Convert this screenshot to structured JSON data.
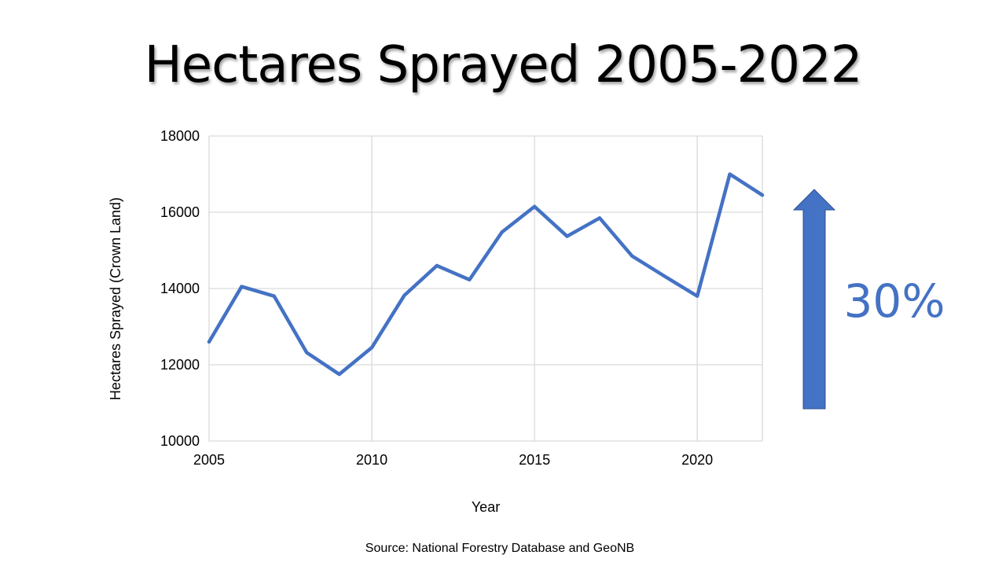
{
  "slide": {
    "title": "Hectares Sprayed 2005-2022",
    "source": "Source: National Forestry Database and GeoNB",
    "callout_label": "30%",
    "callout_color": "#4472C4",
    "arrow_color": "#4472C4",
    "arrow_icon": "up-arrow-icon"
  },
  "chart_data": {
    "type": "line",
    "xlabel": "Year",
    "ylabel": "Hectares Sprayed (Crown Land)",
    "xlim": [
      2005,
      2022
    ],
    "ylim": [
      10000,
      18000
    ],
    "x_ticks": [
      2005,
      2010,
      2015,
      2020
    ],
    "y_ticks": [
      10000,
      12000,
      14000,
      16000,
      18000
    ],
    "grid": true,
    "line_color": "#4472C4",
    "series": [
      {
        "x": [
          2005,
          2006,
          2007,
          2008,
          2009,
          2010,
          2011,
          2012,
          2013,
          2014,
          2015,
          2016,
          2017,
          2018,
          2019,
          2020,
          2021,
          2022
        ],
        "values": [
          12600,
          14050,
          13800,
          12320,
          11750,
          12450,
          13820,
          14600,
          14230,
          15480,
          16150,
          15370,
          15850,
          14850,
          14320,
          13800,
          17000,
          16450
        ]
      }
    ]
  }
}
